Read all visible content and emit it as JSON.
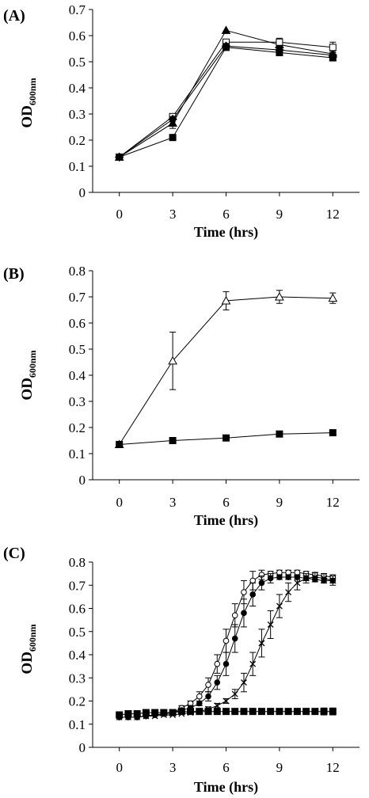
{
  "chart_data": [
    {
      "type": "line",
      "panel_label": "(A)",
      "xlabel": "Time (hrs)",
      "ylabel": "OD",
      "ylabel_subscript": "600nm",
      "x": [
        0,
        3,
        6,
        9,
        12
      ],
      "xticks": [
        "0",
        "3",
        "6",
        "9",
        "12"
      ],
      "yticks": [
        "0",
        "0.1",
        "0.2",
        "0.3",
        "0.4",
        "0.5",
        "0.6",
        "0.7"
      ],
      "xlim": [
        -1.5,
        13.5
      ],
      "ylim": [
        0,
        0.7
      ],
      "grid": false,
      "series": [
        {
          "marker": "triangle-filled",
          "values": [
            0.135,
            0.265,
            0.62,
            0.565,
            0.53
          ],
          "err": [
            0,
            0.02,
            0,
            0.01,
            0.01
          ]
        },
        {
          "marker": "square-open",
          "values": [
            0.135,
            0.29,
            0.575,
            0.575,
            0.555
          ],
          "err": [
            0,
            0.01,
            0.01,
            0.015,
            0.02
          ]
        },
        {
          "marker": "diamond-filled",
          "values": [
            0.135,
            0.28,
            0.56,
            0.545,
            0.525
          ],
          "err": [
            0,
            0.01,
            0.01,
            0.01,
            0.01
          ]
        },
        {
          "marker": "square-filled",
          "values": [
            0.135,
            0.21,
            0.555,
            0.535,
            0.515
          ],
          "err": [
            0,
            0.005,
            0.01,
            0.01,
            0.01
          ]
        }
      ]
    },
    {
      "type": "line",
      "panel_label": "(B)",
      "xlabel": "Time (hrs)",
      "ylabel": "OD",
      "ylabel_subscript": "600nm",
      "x": [
        0,
        3,
        6,
        9,
        12
      ],
      "xticks": [
        "0",
        "3",
        "6",
        "9",
        "12"
      ],
      "yticks": [
        "0",
        "0.1",
        "0.2",
        "0.3",
        "0.4",
        "0.5",
        "0.6",
        "0.7",
        "0.8"
      ],
      "xlim": [
        -1.5,
        13.5
      ],
      "ylim": [
        0,
        0.8
      ],
      "grid": false,
      "series": [
        {
          "marker": "triangle-open",
          "values": [
            0.135,
            0.455,
            0.685,
            0.7,
            0.695
          ],
          "err": [
            0,
            0.11,
            0.035,
            0.025,
            0.02
          ]
        },
        {
          "marker": "square-filled",
          "values": [
            0.135,
            0.15,
            0.16,
            0.175,
            0.18
          ],
          "err": [
            0,
            0.005,
            0.005,
            0.005,
            0.01
          ]
        }
      ]
    },
    {
      "type": "line",
      "panel_label": "(C)",
      "xlabel": "Time (hrs)",
      "ylabel": "OD",
      "ylabel_subscript": "600nm",
      "xticks": [
        "0",
        "3",
        "6",
        "9",
        "12"
      ],
      "yticks": [
        "0",
        "0.1",
        "0.2",
        "0.3",
        "0.4",
        "0.5",
        "0.6",
        "0.7",
        "0.8"
      ],
      "xlim": [
        -1.5,
        13.5
      ],
      "ylim": [
        0,
        0.8
      ],
      "grid": false,
      "series": [
        {
          "marker": "circle-open",
          "x": [
            0,
            0.5,
            1,
            1.5,
            2,
            2.5,
            3,
            3.5,
            4,
            4.5,
            5,
            5.5,
            6,
            6.5,
            7,
            7.5,
            8,
            8.5,
            9,
            9.5,
            10,
            10.5,
            11,
            11.5,
            12
          ],
          "values": [
            0.13,
            0.13,
            0.13,
            0.135,
            0.14,
            0.145,
            0.15,
            0.17,
            0.19,
            0.22,
            0.27,
            0.36,
            0.46,
            0.57,
            0.67,
            0.72,
            0.745,
            0.75,
            0.755,
            0.755,
            0.755,
            0.75,
            0.745,
            0.74,
            0.735
          ],
          "err": [
            0,
            0,
            0,
            0,
            0,
            0,
            0,
            0.01,
            0.01,
            0.02,
            0.03,
            0.04,
            0.05,
            0.05,
            0.05,
            0.04,
            0.02,
            0.01,
            0.01,
            0.01,
            0.01,
            0.01,
            0.01,
            0.01,
            0.01
          ]
        },
        {
          "marker": "circle-filled",
          "x": [
            0,
            0.5,
            1,
            1.5,
            2,
            2.5,
            3,
            3.5,
            4,
            4.5,
            5,
            5.5,
            6,
            6.5,
            7,
            7.5,
            8,
            8.5,
            9,
            9.5,
            10,
            10.5,
            11,
            11.5,
            12
          ],
          "values": [
            0.13,
            0.13,
            0.13,
            0.135,
            0.14,
            0.145,
            0.15,
            0.16,
            0.17,
            0.19,
            0.22,
            0.28,
            0.36,
            0.47,
            0.58,
            0.66,
            0.71,
            0.73,
            0.735,
            0.735,
            0.735,
            0.73,
            0.725,
            0.72,
            0.72
          ],
          "err": [
            0,
            0,
            0,
            0,
            0,
            0,
            0,
            0.01,
            0.01,
            0.01,
            0.02,
            0.03,
            0.05,
            0.06,
            0.06,
            0.05,
            0.03,
            0.02,
            0.01,
            0.01,
            0.01,
            0.01,
            0.01,
            0.01,
            0.01
          ]
        },
        {
          "marker": "cross",
          "x": [
            0,
            0.5,
            1,
            1.5,
            2,
            2.5,
            3,
            3.5,
            4,
            4.5,
            5,
            5.5,
            6,
            6.5,
            7,
            7.5,
            8,
            8.5,
            9,
            9.5,
            10,
            10.5,
            11,
            11.5,
            12
          ],
          "values": [
            0.13,
            0.13,
            0.13,
            0.135,
            0.135,
            0.14,
            0.14,
            0.145,
            0.15,
            0.155,
            0.165,
            0.18,
            0.2,
            0.23,
            0.28,
            0.36,
            0.45,
            0.53,
            0.61,
            0.67,
            0.71,
            0.73,
            0.735,
            0.73,
            0.72
          ],
          "err": [
            0,
            0,
            0,
            0,
            0,
            0,
            0,
            0,
            0,
            0,
            0.01,
            0.01,
            0.01,
            0.02,
            0.04,
            0.05,
            0.06,
            0.06,
            0.05,
            0.04,
            0.03,
            0.02,
            0.02,
            0.02,
            0.02
          ]
        },
        {
          "marker": "square-filled",
          "x": [
            0,
            0.5,
            1,
            1.5,
            2,
            2.5,
            3,
            3.5,
            4,
            4.5,
            5,
            5.5,
            6,
            6.5,
            7,
            7.5,
            8,
            8.5,
            9,
            9.5,
            10,
            10.5,
            11,
            11.5,
            12
          ],
          "values": [
            0.14,
            0.145,
            0.145,
            0.15,
            0.15,
            0.15,
            0.15,
            0.155,
            0.155,
            0.155,
            0.155,
            0.155,
            0.155,
            0.155,
            0.155,
            0.155,
            0.155,
            0.155,
            0.155,
            0.155,
            0.155,
            0.155,
            0.155,
            0.155,
            0.155
          ],
          "err": [
            0.01,
            0.01,
            0.01,
            0.01,
            0.01,
            0.01,
            0.01,
            0.01,
            0.01,
            0.01,
            0.01,
            0.01,
            0.01,
            0.01,
            0.01,
            0.01,
            0.01,
            0.01,
            0.01,
            0.01,
            0.01,
            0.01,
            0.01,
            0.015,
            0.015
          ]
        }
      ]
    }
  ]
}
